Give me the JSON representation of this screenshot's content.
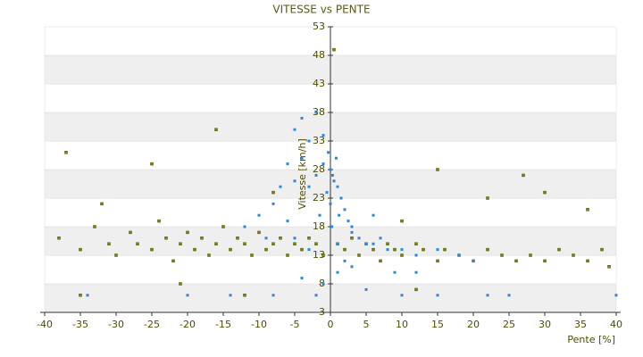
{
  "chart_data": {
    "type": "scatter",
    "title": "VITESSE vs PENTE",
    "x_label": "Pente [%]",
    "y_label": "Vitesse [km/h]",
    "xlim": [
      -40,
      40
    ],
    "ylim": [
      3,
      53
    ],
    "xticks": [
      -40,
      -35,
      -30,
      -25,
      -20,
      -15,
      -10,
      -5,
      0,
      5,
      10,
      15,
      20,
      25,
      30,
      35,
      40
    ],
    "yticks": [
      3,
      8,
      13,
      18,
      23,
      28,
      33,
      38,
      43,
      48,
      53
    ],
    "banded_grid": true,
    "series": [
      {
        "color": "#7a8a00",
        "x": [
          -38,
          -35,
          -33,
          -31,
          -30,
          -28,
          -27,
          -25,
          -24,
          -23,
          -22,
          -21,
          -20,
          -19,
          -18,
          -17,
          -16,
          -15,
          -14,
          -13,
          -12,
          -11,
          -10,
          -9,
          -8,
          -7,
          -6,
          -5,
          -4,
          -3,
          -2,
          -1,
          1,
          2,
          3,
          4,
          5,
          6,
          7,
          8,
          9,
          10,
          12,
          13,
          15,
          16,
          18,
          20,
          22,
          24,
          26,
          28,
          30,
          32,
          34,
          36,
          38,
          39,
          -37,
          -16,
          -25,
          15,
          27,
          22,
          36,
          -32,
          -21,
          -12,
          12,
          -35,
          30,
          10,
          -8,
          0.5
        ],
        "y": [
          16,
          14,
          18,
          15,
          13,
          17,
          15,
          14,
          19,
          16,
          12,
          15,
          17,
          14,
          16,
          13,
          15,
          18,
          14,
          16,
          15,
          13,
          17,
          14,
          15,
          16,
          13,
          15,
          14,
          16,
          15,
          13,
          15,
          14,
          16,
          13,
          15,
          14,
          12,
          15,
          14,
          13,
          15,
          14,
          12,
          14,
          13,
          12,
          14,
          13,
          12,
          13,
          12,
          14,
          13,
          12,
          14,
          11,
          31,
          35,
          29,
          28,
          27,
          23,
          21,
          22,
          8,
          6,
          7,
          6,
          24,
          19,
          24,
          49
        ]
      },
      {
        "color": "#2f86d6",
        "x": [
          0,
          0.5,
          1,
          -0.5,
          1.5,
          0,
          0.8,
          -1,
          2,
          0.3,
          -0.3,
          1.2,
          2.5,
          3,
          -2,
          -3,
          -4,
          -5,
          -2,
          -4,
          -6,
          -7,
          -8,
          -10,
          -12,
          -3,
          -1,
          -5,
          -9,
          -6,
          4,
          5,
          6,
          8,
          10,
          12,
          15,
          18,
          20,
          3,
          7,
          2,
          1,
          -1,
          -2,
          -8,
          -14,
          -20,
          5,
          10,
          15,
          22,
          25,
          40,
          -34,
          -4,
          9,
          0.2,
          -1.5,
          1,
          -3,
          -5,
          12,
          6,
          3
        ],
        "y": [
          28,
          26,
          25,
          24,
          23,
          22,
          30,
          29,
          21,
          27,
          31,
          20,
          19,
          18,
          27,
          33,
          30,
          35,
          38,
          37,
          29,
          25,
          22,
          20,
          18,
          25,
          34,
          26,
          16,
          19,
          16,
          15,
          15,
          14,
          14,
          13,
          14,
          13,
          12,
          17,
          16,
          12,
          10,
          8,
          6,
          6,
          6,
          6,
          7,
          6,
          6,
          6,
          6,
          6,
          6,
          9,
          10,
          18,
          20,
          15,
          14,
          16,
          10,
          20,
          11
        ]
      }
    ]
  }
}
